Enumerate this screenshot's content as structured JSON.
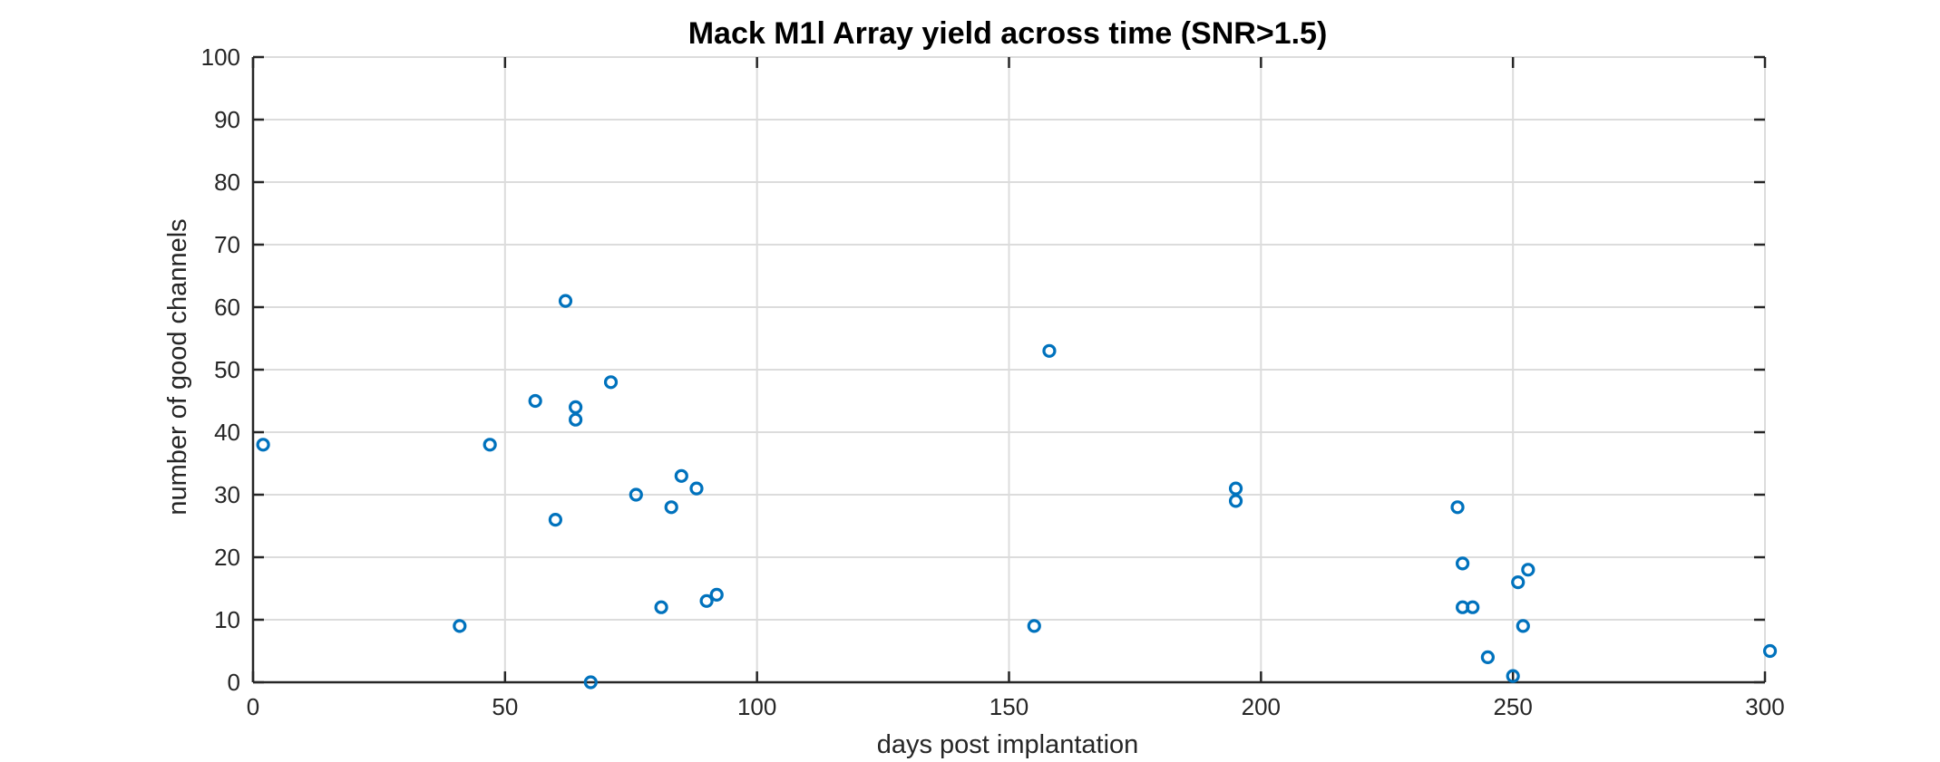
{
  "chart_data": {
    "type": "scatter",
    "title": "Mack M1l Array yield across time (SNR>1.5)",
    "xlabel": "days post implantation",
    "ylabel": "number of good channels",
    "xlim": [
      0,
      300
    ],
    "ylim": [
      0,
      100
    ],
    "xticks": [
      0,
      50,
      100,
      150,
      200,
      250,
      300
    ],
    "yticks": [
      0,
      10,
      20,
      30,
      40,
      50,
      60,
      70,
      80,
      90,
      100
    ],
    "grid": true,
    "marker": "open-circle",
    "color": "#0072BD",
    "points": [
      {
        "x": 2,
        "y": 38
      },
      {
        "x": 41,
        "y": 9
      },
      {
        "x": 47,
        "y": 38
      },
      {
        "x": 56,
        "y": 45
      },
      {
        "x": 60,
        "y": 26
      },
      {
        "x": 62,
        "y": 61
      },
      {
        "x": 64,
        "y": 44
      },
      {
        "x": 64,
        "y": 42
      },
      {
        "x": 67,
        "y": 0
      },
      {
        "x": 71,
        "y": 48
      },
      {
        "x": 76,
        "y": 30
      },
      {
        "x": 81,
        "y": 12
      },
      {
        "x": 83,
        "y": 28
      },
      {
        "x": 85,
        "y": 33
      },
      {
        "x": 88,
        "y": 31
      },
      {
        "x": 90,
        "y": 13
      },
      {
        "x": 92,
        "y": 14
      },
      {
        "x": 155,
        "y": 9
      },
      {
        "x": 158,
        "y": 53
      },
      {
        "x": 195,
        "y": 31
      },
      {
        "x": 195,
        "y": 29
      },
      {
        "x": 239,
        "y": 28
      },
      {
        "x": 240,
        "y": 19
      },
      {
        "x": 240,
        "y": 12
      },
      {
        "x": 242,
        "y": 12
      },
      {
        "x": 245,
        "y": 4
      },
      {
        "x": 250,
        "y": 1
      },
      {
        "x": 251,
        "y": 16
      },
      {
        "x": 252,
        "y": 9
      },
      {
        "x": 253,
        "y": 18
      },
      {
        "x": 301,
        "y": 5
      }
    ]
  }
}
